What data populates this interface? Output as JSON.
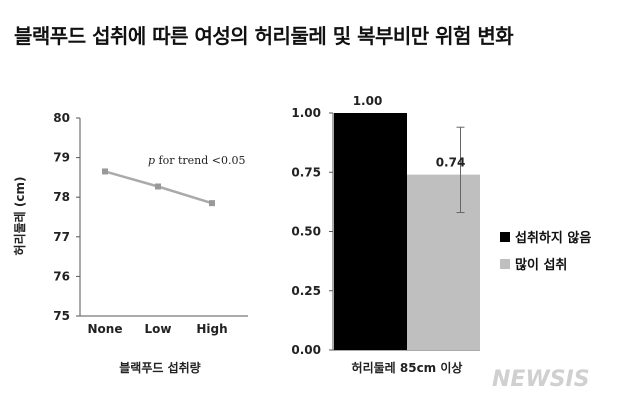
{
  "title": "블랙푸드 섭취에 따른 여성의 허리둘레 및 복부비만 위험 변화",
  "watermark": "NEWSIS",
  "chart_data": [
    {
      "type": "line",
      "categories": [
        "None",
        "Low",
        "High"
      ],
      "values": [
        78.65,
        78.27,
        77.85
      ],
      "ylabel": "허리둘레 (cm)",
      "xlabel": "블랙푸드 섭취량",
      "ylim": [
        75,
        80
      ],
      "yticks": [
        "75",
        "76",
        "77",
        "78",
        "79",
        "80"
      ],
      "annotation": {
        "italic": "p",
        "text": " for trend <0.05"
      },
      "color": "#aaaaaa",
      "grid": false
    },
    {
      "type": "bar",
      "categories": [
        "허리둘레 85cm 이상"
      ],
      "series": [
        {
          "name": "섭취하지 않음",
          "values": [
            1.0
          ],
          "label": "1.00",
          "color": "#000000"
        },
        {
          "name": "많이 섭취",
          "values": [
            0.74
          ],
          "label": "0.74",
          "color": "#bfbfbf",
          "error": [
            0.58,
            0.94
          ]
        }
      ],
      "xlabel": "허리둘레 85cm 이상",
      "ylim": [
        0,
        1.0
      ],
      "yticks": [
        "0.00",
        "0.25",
        "0.50",
        "0.75",
        "1.00"
      ],
      "legend": "right",
      "grid": false
    }
  ]
}
